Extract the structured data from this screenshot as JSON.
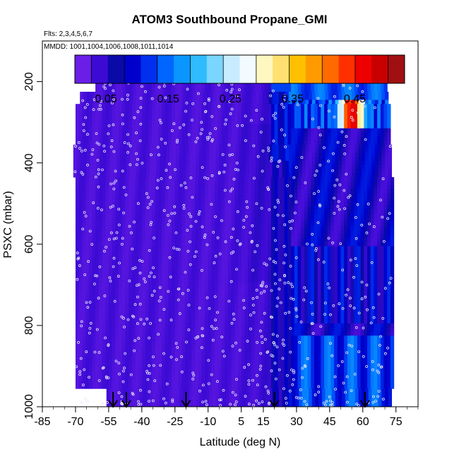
{
  "chart_data": {
    "type": "heatmap",
    "title": "ATOM3 Southbound Propane_GMI",
    "flights_note": "Flts: 2,3,4,5,6,7",
    "dates_note": "MMDD: 1001,1004,1006,1008,1011,1014",
    "xlabel": "Latitude (deg N)",
    "ylabel": "PSXC (mbar)",
    "xlim": [
      -85,
      85
    ],
    "ylim": [
      1000,
      100
    ],
    "x_ticks": [
      -85,
      -70,
      -55,
      -40,
      -25,
      -10,
      5,
      15,
      30,
      45,
      60,
      75
    ],
    "y_ticks": [
      200,
      400,
      600,
      800,
      1000
    ],
    "colorbar": {
      "range": [
        0,
        0.53
      ],
      "tick_values": [
        0.05,
        0.15,
        0.25,
        0.35,
        0.45
      ],
      "tick_labels": [
        "0.05",
        "0.15",
        "0.25",
        "0.35",
        "0.45"
      ],
      "colors": [
        "#6a1ee8",
        "#3c0ad4",
        "#0a0aa8",
        "#0000cc",
        "#0030ee",
        "#0066ff",
        "#0a96ff",
        "#30bbff",
        "#7ad6ff",
        "#c8ecff",
        "#f2fbff",
        "#fff7c0",
        "#ffe070",
        "#ffc000",
        "#ff9a00",
        "#ff6a00",
        "#ff3000",
        "#ee0000",
        "#c80000",
        "#a01010"
      ]
    },
    "flight_markers_lat": [
      -53,
      -47,
      -20,
      20,
      61
    ],
    "field_description": "Propane mixing ratio: ~0.02 south of 20N, ~0.05-0.15 north of 20N, with a high (~0.45-0.5) upper-tropospheric feature near 55N around 250 mbar",
    "gridlines": false
  }
}
